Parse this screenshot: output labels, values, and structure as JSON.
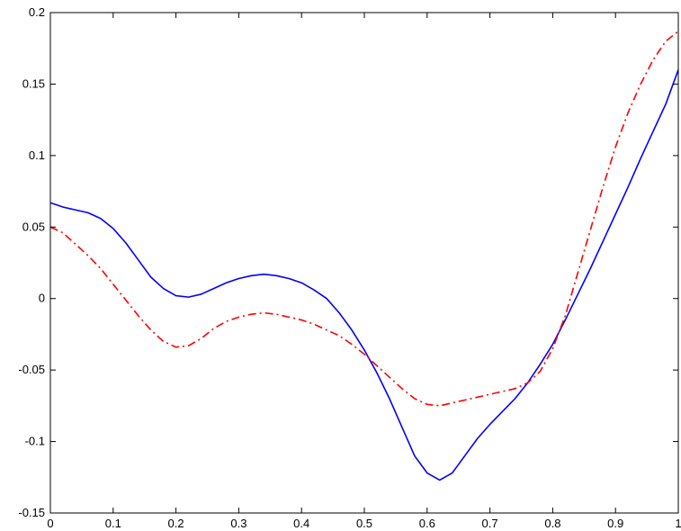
{
  "chart_data": {
    "type": "line",
    "title": "",
    "xlabel": "",
    "ylabel": "",
    "xlim": [
      0,
      1
    ],
    "ylim": [
      -0.15,
      0.2
    ],
    "xticks": [
      0,
      0.1,
      0.2,
      0.3,
      0.4,
      0.5,
      0.6,
      0.7,
      0.8,
      0.9,
      1
    ],
    "xtick_labels": [
      "0",
      "0.1",
      "0.2",
      "0.3",
      "0.4",
      "0.5",
      "0.6",
      "0.7",
      "0.8",
      "0.9",
      "1"
    ],
    "yticks": [
      -0.15,
      -0.1,
      -0.05,
      0,
      0.05,
      0.1,
      0.15,
      0.2
    ],
    "ytick_labels": [
      "-0.15",
      "-0.1",
      "-0.05",
      "0",
      "0.05",
      "0.1",
      "0.15",
      "0.2"
    ],
    "grid": false,
    "legend": "none",
    "series": [
      {
        "style": "solid",
        "color": "#0000ff",
        "x": [
          0,
          0.02,
          0.04,
          0.06,
          0.08,
          0.1,
          0.12,
          0.14,
          0.16,
          0.18,
          0.2,
          0.22,
          0.24,
          0.26,
          0.28,
          0.3,
          0.32,
          0.34,
          0.36,
          0.38,
          0.4,
          0.42,
          0.44,
          0.46,
          0.48,
          0.5,
          0.52,
          0.54,
          0.56,
          0.58,
          0.6,
          0.62,
          0.64,
          0.66,
          0.68,
          0.7,
          0.72,
          0.74,
          0.76,
          0.78,
          0.8,
          0.82,
          0.84,
          0.86,
          0.88,
          0.9,
          0.92,
          0.94,
          0.96,
          0.98,
          1.0
        ],
        "y": [
          0.067,
          0.064,
          0.062,
          0.06,
          0.056,
          0.049,
          0.039,
          0.027,
          0.015,
          0.007,
          0.002,
          0.001,
          0.003,
          0.007,
          0.011,
          0.014,
          0.016,
          0.017,
          0.016,
          0.014,
          0.011,
          0.006,
          0.0,
          -0.01,
          -0.022,
          -0.036,
          -0.052,
          -0.07,
          -0.09,
          -0.11,
          -0.122,
          -0.127,
          -0.122,
          -0.11,
          -0.098,
          -0.088,
          -0.079,
          -0.07,
          -0.059,
          -0.046,
          -0.032,
          -0.015,
          0.003,
          0.021,
          0.04,
          0.059,
          0.078,
          0.098,
          0.117,
          0.136,
          0.16
        ]
      },
      {
        "style": "dash-dot",
        "color": "#ff0000",
        "x": [
          0,
          0.02,
          0.04,
          0.06,
          0.08,
          0.1,
          0.12,
          0.14,
          0.16,
          0.18,
          0.2,
          0.22,
          0.24,
          0.26,
          0.28,
          0.3,
          0.32,
          0.34,
          0.36,
          0.38,
          0.4,
          0.42,
          0.44,
          0.46,
          0.48,
          0.5,
          0.52,
          0.54,
          0.56,
          0.58,
          0.6,
          0.62,
          0.64,
          0.66,
          0.68,
          0.7,
          0.72,
          0.74,
          0.76,
          0.78,
          0.8,
          0.82,
          0.84,
          0.86,
          0.88,
          0.9,
          0.92,
          0.94,
          0.96,
          0.98,
          1.0
        ],
        "y": [
          0.05,
          0.046,
          0.038,
          0.03,
          0.021,
          0.01,
          -0.001,
          -0.012,
          -0.022,
          -0.03,
          -0.034,
          -0.033,
          -0.028,
          -0.021,
          -0.016,
          -0.013,
          -0.011,
          -0.01,
          -0.011,
          -0.013,
          -0.015,
          -0.018,
          -0.022,
          -0.026,
          -0.032,
          -0.039,
          -0.047,
          -0.055,
          -0.063,
          -0.07,
          -0.074,
          -0.075,
          -0.073,
          -0.071,
          -0.069,
          -0.067,
          -0.065,
          -0.063,
          -0.059,
          -0.051,
          -0.035,
          -0.012,
          0.018,
          0.048,
          0.078,
          0.106,
          0.13,
          0.15,
          0.167,
          0.18,
          0.187
        ]
      }
    ]
  }
}
